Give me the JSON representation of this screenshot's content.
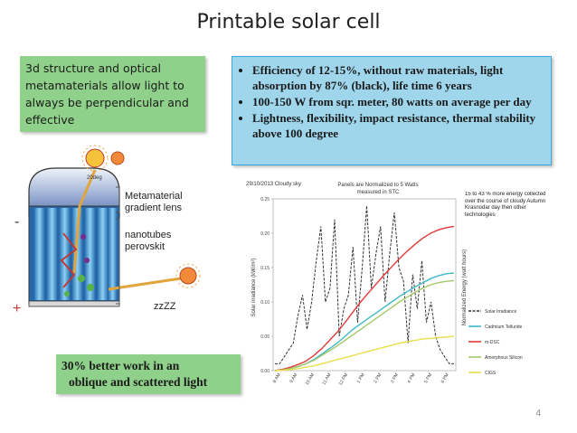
{
  "slide": {
    "title": "Printable solar cell",
    "page_number": "4",
    "left_box_text": "3d structure and optical metamaterials allow light to always be perpendicular and effective",
    "bullets": [
      "Efficiency of 12-15%, without raw materials, light absorption by 87% (black), life time 6 years",
      "100-150 W from sqr. meter, 80 watts on average per day",
      "Lightness, flexibility, impact resistance,  thermal stability above 100 degree"
    ],
    "bottom_box_line1": "30% better work in an",
    "bottom_box_line2": "oblique and scattered light",
    "colors": {
      "green_box": "#8fd18a",
      "blue_box": "#9fd6ec",
      "blue_border": "#3aa7d8"
    }
  },
  "diagram": {
    "label_metamaterial": "Metamaterial",
    "label_gradient_lens": "gradient lens",
    "label_nanotubes": "nanotubes",
    "label_perovskit": "perovskit",
    "label_minus": "-",
    "label_plus": "+",
    "label_sleep": "zzZZ",
    "label_sun_angle": "20deg"
  },
  "chart_data": {
    "type": "line",
    "header_left": "29/10/2013 Cloudy sky",
    "title_line1": "Panels are Normalized to 5 Watts",
    "title_line2": "measured in STC",
    "ylabel_left": "Solar irradiance (kW/m²)",
    "ylabel_right": "Normalized Energy (watt hours)",
    "yticks_left": [
      "0.00",
      "0.05",
      "0.10",
      "0.15",
      "0.20",
      "0.25"
    ],
    "xticks": [
      "8 AM",
      "9 AM",
      "10 AM",
      "11 AM",
      "12 PM",
      "1 PM",
      "2 PM",
      "3 PM",
      "4 PM",
      "5 PM",
      "6 PM"
    ],
    "ylim_left": [
      0,
      0.25
    ],
    "annotation": "15 to 43 % more energy collected over the course of cloudy Autumn Krasnodar day  then other technologies",
    "series": [
      {
        "name": "Solar Irradiance",
        "color": "#333333",
        "dashed": true,
        "values": [
          0.01,
          0.01,
          0.02,
          0.03,
          0.04,
          0.08,
          0.11,
          0.06,
          0.1,
          0.16,
          0.21,
          0.1,
          0.12,
          0.22,
          0.05,
          0.09,
          0.11,
          0.18,
          0.07,
          0.15,
          0.24,
          0.12,
          0.17,
          0.21,
          0.1,
          0.17,
          0.23,
          0.15,
          0.13,
          0.04,
          0.14,
          0.09,
          0.16,
          0.07,
          0.1,
          0.05,
          0.03,
          0.02,
          0.01,
          0.01
        ]
      },
      {
        "name": "Cadmium Telluride",
        "color": "#3fb8c8",
        "values": [
          0,
          0.001,
          0.003,
          0.006,
          0.01,
          0.016,
          0.024,
          0.032,
          0.04,
          0.05,
          0.06,
          0.068,
          0.076,
          0.084,
          0.092,
          0.1,
          0.108,
          0.115,
          0.122,
          0.128,
          0.134,
          0.138,
          0.141,
          0.142
        ]
      },
      {
        "name": "m-DSC",
        "color": "#e03a3a",
        "values": [
          0,
          0.002,
          0.005,
          0.009,
          0.014,
          0.022,
          0.032,
          0.044,
          0.056,
          0.07,
          0.085,
          0.1,
          0.113,
          0.126,
          0.139,
          0.151,
          0.163,
          0.174,
          0.184,
          0.193,
          0.2,
          0.205,
          0.208,
          0.21
        ]
      },
      {
        "name": "Amorphous Silicon",
        "color": "#a3c96b",
        "values": [
          0,
          0.001,
          0.003,
          0.006,
          0.01,
          0.015,
          0.022,
          0.029,
          0.036,
          0.044,
          0.052,
          0.06,
          0.068,
          0.076,
          0.084,
          0.092,
          0.1,
          0.107,
          0.114,
          0.12,
          0.125,
          0.128,
          0.13,
          0.131
        ]
      },
      {
        "name": "CIGS",
        "color": "#e8e04a",
        "values": [
          0,
          0.0005,
          0.0015,
          0.003,
          0.005,
          0.007,
          0.01,
          0.013,
          0.016,
          0.019,
          0.022,
          0.025,
          0.028,
          0.031,
          0.034,
          0.037,
          0.04,
          0.042,
          0.044,
          0.046,
          0.047,
          0.048,
          0.049,
          0.05
        ]
      }
    ]
  }
}
